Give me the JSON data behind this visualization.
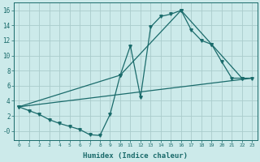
{
  "xlabel": "Humidex (Indice chaleur)",
  "bg_color": "#cceaea",
  "grid_color": "#aacccc",
  "line_color": "#1a6b6b",
  "xlim": [
    -0.5,
    23.5
  ],
  "ylim": [
    -1.2,
    17
  ],
  "yticks": [
    0,
    2,
    4,
    6,
    8,
    10,
    12,
    14,
    16
  ],
  "ytick_labels": [
    "-0",
    "2",
    "4",
    "6",
    "8",
    "10",
    "12",
    "14",
    "16"
  ],
  "xticks": [
    0,
    1,
    2,
    3,
    4,
    5,
    6,
    7,
    8,
    9,
    10,
    11,
    12,
    13,
    14,
    15,
    16,
    17,
    18,
    19,
    20,
    21,
    22,
    23
  ],
  "line1_x": [
    0,
    1,
    2,
    3,
    4,
    5,
    6,
    7,
    8,
    9,
    10,
    11,
    12,
    13,
    14,
    15,
    16,
    17,
    18,
    19,
    20,
    21,
    22,
    23
  ],
  "line1_y": [
    3.2,
    2.7,
    2.2,
    1.5,
    1.0,
    0.6,
    0.2,
    -0.5,
    -0.6,
    2.2,
    7.4,
    11.3,
    4.5,
    13.8,
    15.2,
    15.5,
    16.0,
    13.4,
    12.0,
    11.5,
    9.2,
    7.0,
    7.0,
    7.0
  ],
  "line2_x": [
    0,
    10,
    16,
    19,
    22
  ],
  "line2_y": [
    3.2,
    7.4,
    16.0,
    11.5,
    7.0
  ],
  "line3_x": [
    0,
    23
  ],
  "line3_y": [
    3.2,
    7.0
  ]
}
